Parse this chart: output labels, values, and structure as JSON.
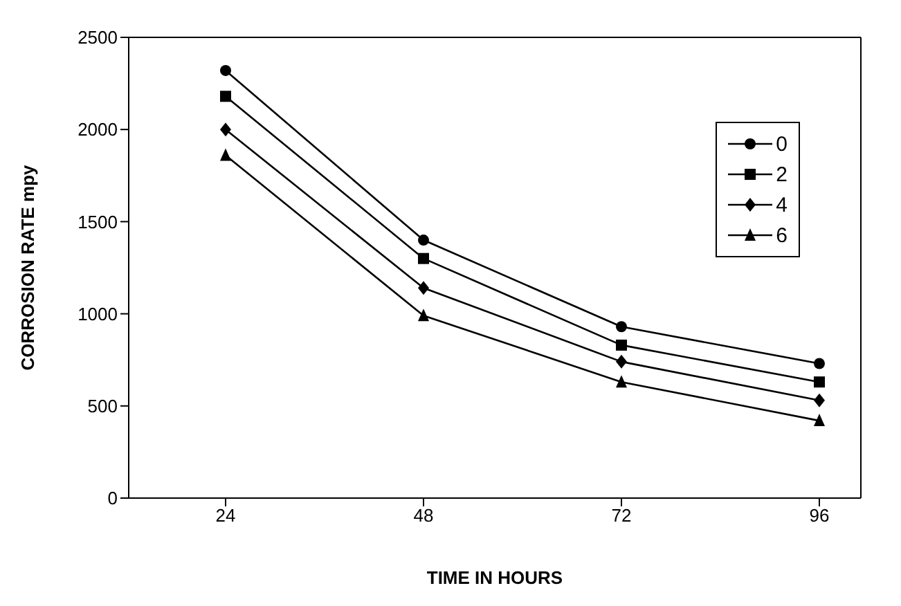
{
  "chart_data": {
    "type": "line",
    "xlabel": "TIME IN HOURS",
    "ylabel": "CORROSION RATE mpy",
    "categories": [
      "24",
      "48",
      "72",
      "96"
    ],
    "series": [
      {
        "name": "0",
        "color": "#000000",
        "marker": "circle",
        "values": [
          2320,
          1400,
          930,
          730
        ]
      },
      {
        "name": "2",
        "color": "#000000",
        "marker": "square",
        "values": [
          2180,
          1300,
          830,
          630
        ]
      },
      {
        "name": "4",
        "color": "#000000",
        "marker": "diamond",
        "values": [
          2000,
          1140,
          740,
          530
        ]
      },
      {
        "name": "6",
        "color": "#000000",
        "marker": "triangle",
        "values": [
          1860,
          990,
          630,
          420
        ]
      }
    ],
    "ylim": [
      0,
      2500
    ],
    "yticks": [
      0,
      500,
      1000,
      1500,
      2000,
      2500
    ],
    "grid": false,
    "legend": "top right"
  }
}
